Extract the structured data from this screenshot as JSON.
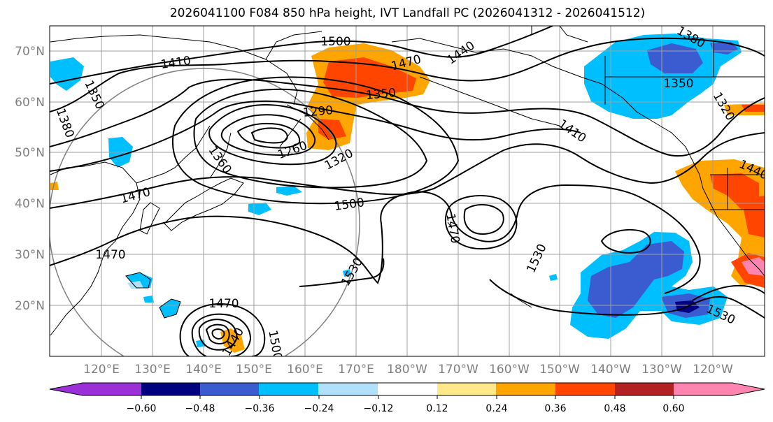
{
  "title": "2026041100 F084 850 hPa height, IVT Landfall PC (2026041312 - 2026041512)",
  "lat_labels": [
    "70°N",
    "60°N",
    "50°N",
    "40°N",
    "30°N",
    "20°N"
  ],
  "lon_labels": [
    "120°E",
    "130°E",
    "140°E",
    "150°E",
    "160°E",
    "170°E",
    "180°W",
    "170°W",
    "160°W",
    "150°W",
    "140°W",
    "130°W",
    "120°W"
  ],
  "contour_labels": [
    "1500",
    "1410",
    "1470",
    "1440",
    "1380",
    "1350",
    "1350",
    "1380",
    "1290",
    "1260",
    "1320",
    "1360",
    "1350",
    "1320",
    "1410",
    "1440",
    "1470",
    "1500",
    "1470",
    "1470",
    "1530",
    "1530",
    "1470",
    "1440",
    "1500",
    "1530"
  ],
  "colorbar": {
    "ticks": [
      "−0.60",
      "−0.48",
      "−0.36",
      "−0.24",
      "−0.12",
      "0.12",
      "0.24",
      "0.36",
      "0.48",
      "0.60"
    ],
    "colors": [
      "#9b30d9",
      "#000080",
      "#3b5bd1",
      "#00bfff",
      "#b0e0fa",
      "#ffffff",
      "#ffe88a",
      "#ffa500",
      "#ff4500",
      "#b22222",
      "#ff85b0",
      "#ff85b0"
    ]
  },
  "fill_colors": {
    "pos_light": "#ffe88a",
    "pos_orange": "#ffa500",
    "pos_red": "#ff4500",
    "pos_dark": "#b22222",
    "pos_pink": "#ff85b0",
    "neg_light": "#b0e0fa",
    "neg_cyan": "#00bfff",
    "neg_blue": "#3b5bd1",
    "neg_navy": "#000080"
  }
}
